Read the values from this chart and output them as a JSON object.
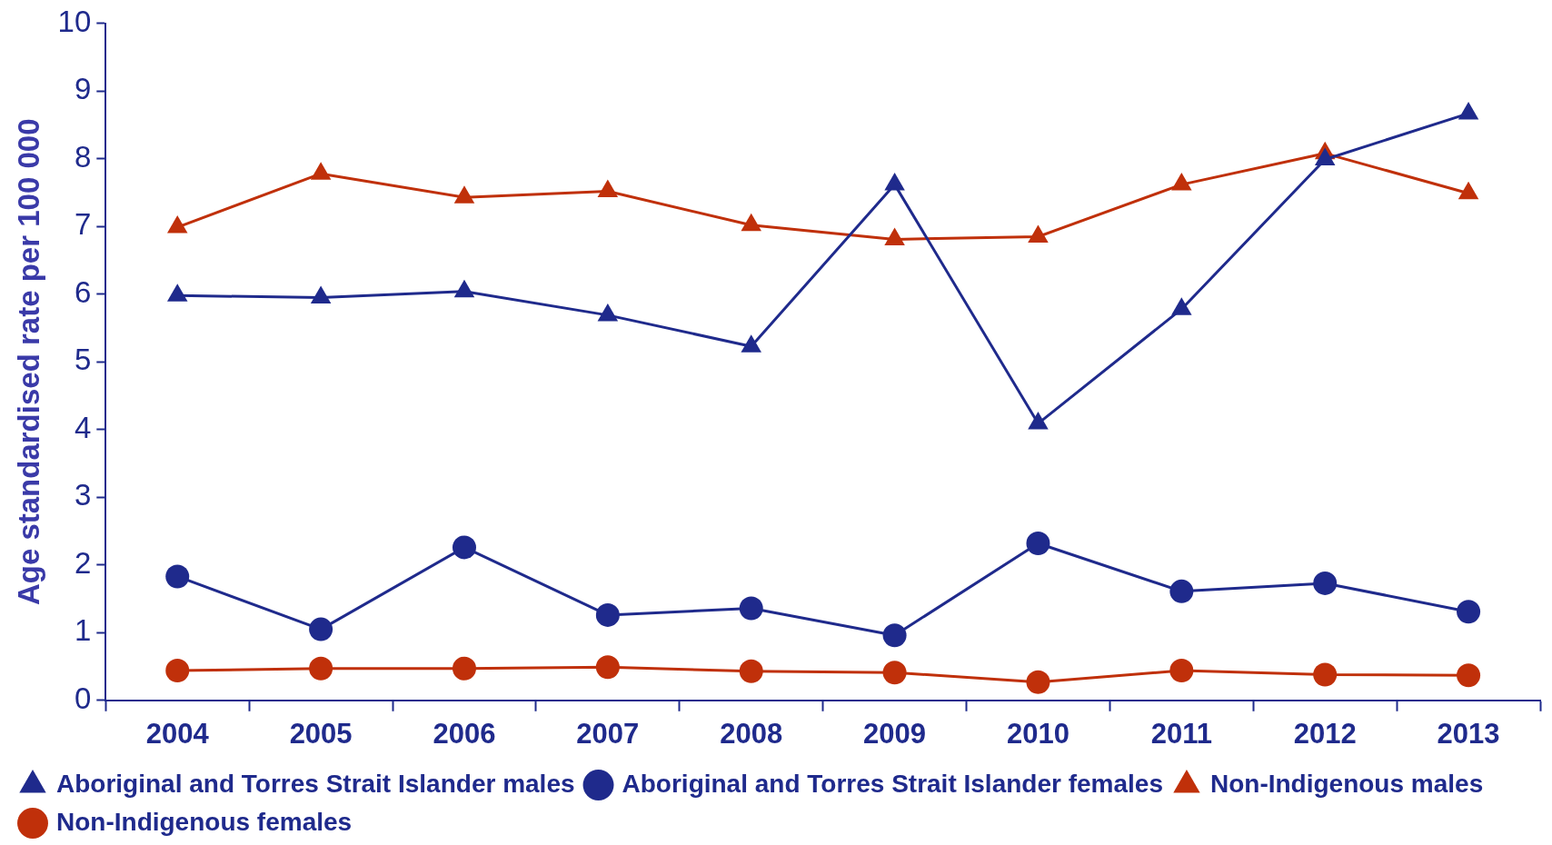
{
  "chart_data": {
    "type": "line",
    "ylabel": "Age standardised rate per 100 000",
    "categories": [
      "2004",
      "2005",
      "2006",
      "2007",
      "2008",
      "2009",
      "2010",
      "2011",
      "2012",
      "2013"
    ],
    "series": [
      {
        "name": "Aboriginal and Torres Strait Islander males",
        "color": "#1f2a8c",
        "marker": "triangle",
        "values": [
          5.98,
          5.95,
          6.04,
          5.69,
          5.23,
          7.62,
          4.09,
          5.78,
          7.99,
          8.67
        ]
      },
      {
        "name": "Aboriginal and Torres Strait Islander females",
        "color": "#1f2a8c",
        "marker": "circle",
        "values": [
          1.83,
          1.05,
          2.26,
          1.26,
          1.36,
          0.96,
          2.32,
          1.61,
          1.73,
          1.31
        ]
      },
      {
        "name": "Non-Indigenous males",
        "color": "#c0300a",
        "marker": "triangle",
        "values": [
          6.99,
          7.78,
          7.43,
          7.52,
          7.02,
          6.81,
          6.85,
          7.62,
          8.08,
          7.49
        ]
      },
      {
        "name": "Non-Indigenous females",
        "color": "#c0300a",
        "marker": "circle",
        "values": [
          0.44,
          0.47,
          0.47,
          0.49,
          0.43,
          0.41,
          0.27,
          0.44,
          0.38,
          0.37
        ]
      }
    ],
    "ylim": [
      0,
      10
    ],
    "yticks": [
      0,
      1,
      2,
      3,
      4,
      5,
      6,
      7,
      8,
      9,
      10
    ],
    "grid": false,
    "legend": "bottom"
  }
}
